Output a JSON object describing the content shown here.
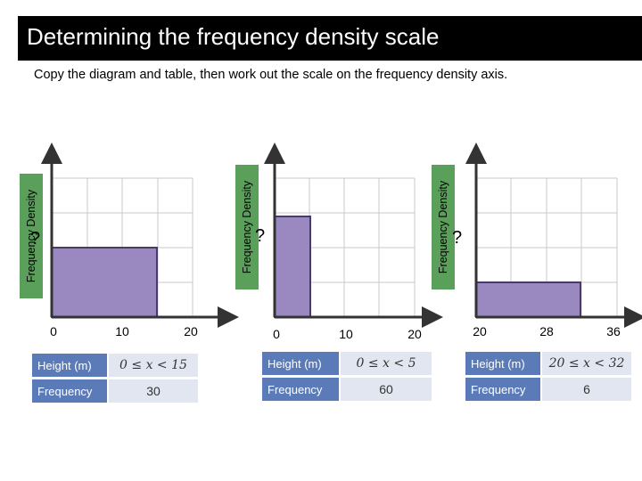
{
  "title": "Determining the frequency density scale",
  "subtitle": "Copy the diagram and table, then work out the scale on the frequency density axis.",
  "charts": [
    {
      "ylabel": "Frequency Density",
      "unknown": "?",
      "ticks": [
        "0",
        "10",
        "20"
      ],
      "table": {
        "height_label": "Height (m)",
        "height_value": "0 ≤ x < 15",
        "frequency_label": "Frequency",
        "frequency_value": "30"
      }
    },
    {
      "ylabel": "Frequency Density",
      "unknown": "?",
      "ticks": [
        "0",
        "10",
        "20"
      ],
      "table": {
        "height_label": "Height (m)",
        "height_value": "0 ≤ x < 5",
        "frequency_label": "Frequency",
        "frequency_value": "60"
      }
    },
    {
      "ylabel": "Frequency Density",
      "unknown": "?",
      "ticks": [
        "20",
        "28",
        "36"
      ],
      "table": {
        "height_label": "Height (m)",
        "height_value": "20 ≤ x < 32",
        "frequency_label": "Frequency",
        "frequency_value": "6"
      }
    }
  ],
  "colors": {
    "bar_fill": "#9a88c0",
    "bar_stroke": "#4a3a6a",
    "axis": "#333333",
    "grid": "#c8c8c8",
    "label_bg": "#5aa05a",
    "header_bg": "#5b7bb8",
    "value_bg": "#e2e6f0"
  }
}
